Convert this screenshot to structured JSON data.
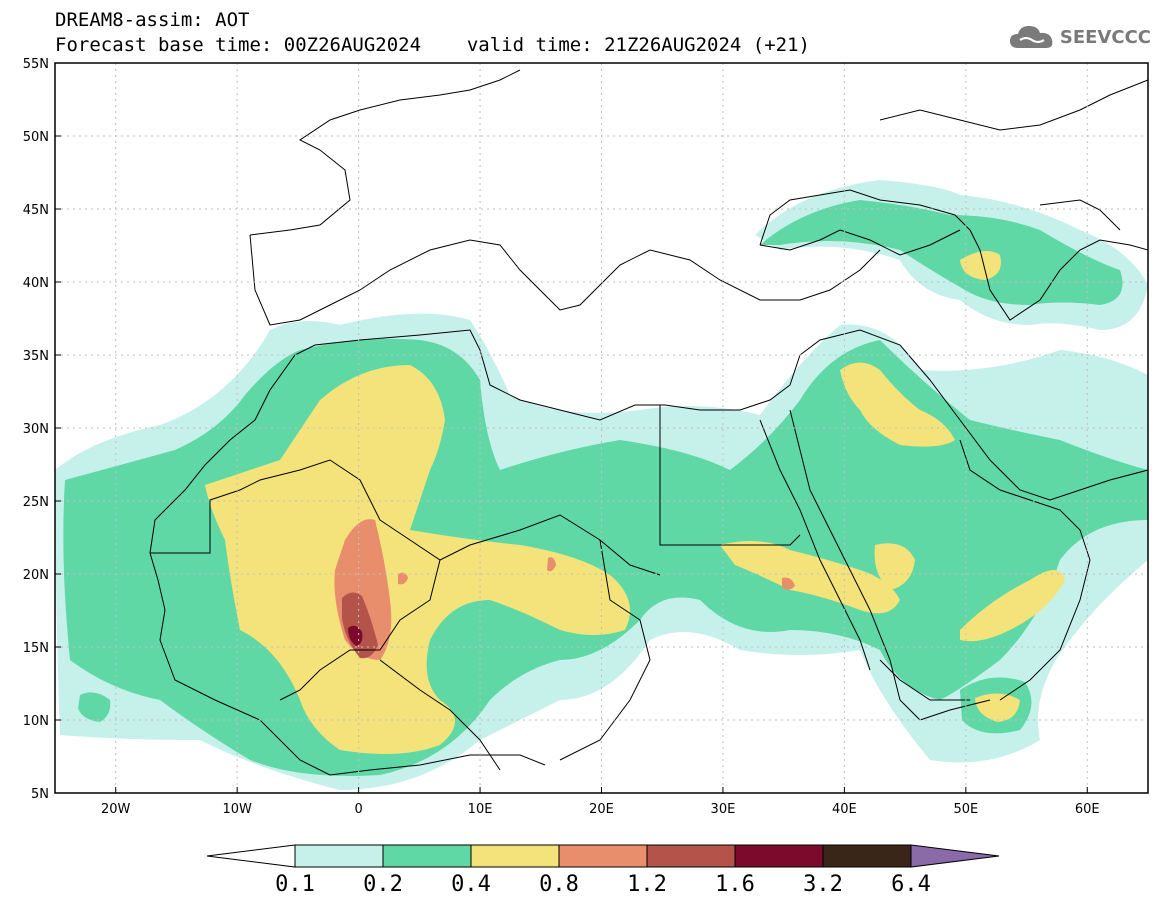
{
  "header": {
    "title_line1": "DREAM8-assim: AOT",
    "base_time": "Forecast base time: 00Z26AUG2024",
    "valid_time": "valid time: 21Z26AUG2024 (+21)"
  },
  "logo": {
    "text": "SEEVCCC",
    "icon": "cloud-icon"
  },
  "map": {
    "lon_range": [
      -25,
      65
    ],
    "lat_range": [
      5,
      55
    ],
    "lat_ticks": [
      "55N",
      "50N",
      "45N",
      "40N",
      "35N",
      "30N",
      "25N",
      "20N",
      "15N",
      "10N",
      "5N"
    ],
    "lon_ticks": [
      "20W",
      "10W",
      "0",
      "10E",
      "20E",
      "30E",
      "40E",
      "50E",
      "60E"
    ]
  },
  "colorbar": {
    "labels": [
      "0.1",
      "0.2",
      "0.4",
      "0.8",
      "1.2",
      "1.6",
      "3.2",
      "6.4"
    ],
    "colors": [
      "#c6f1ea",
      "#5fd8a6",
      "#f3e37a",
      "#e88e6c",
      "#b4534a",
      "#7c0a2c",
      "#3a2618",
      "#8a6aa9"
    ]
  }
}
